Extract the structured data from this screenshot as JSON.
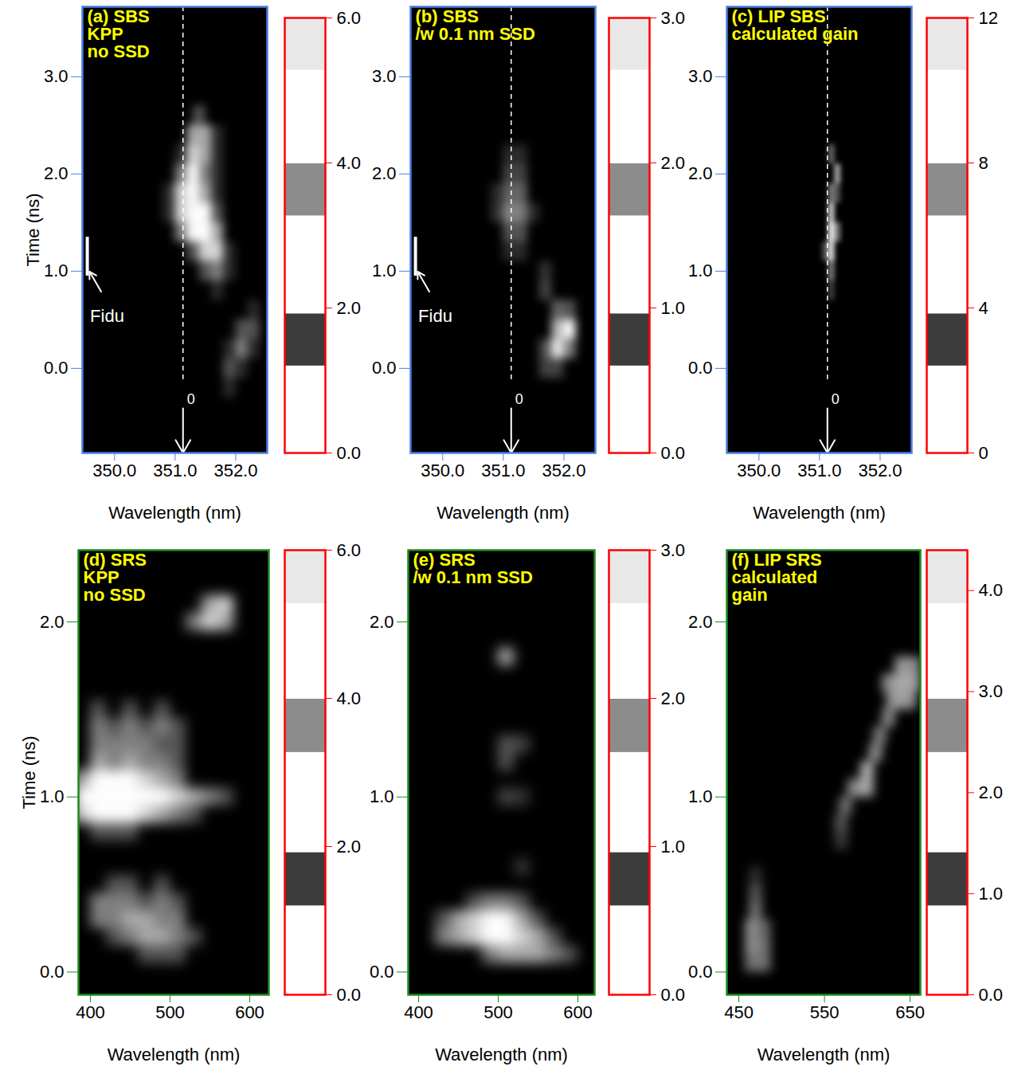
{
  "chart_data": [
    {
      "type": "heatmap",
      "title": [
        "(a) SBS",
        "KPP",
        "no SSD"
      ],
      "color": "#4a7fe0",
      "xlabel": "Wavelength (nm)",
      "ylabel": "Time (ns)",
      "xlim": [
        349.47,
        352.52
      ],
      "ylim": [
        -0.87,
        3.72
      ],
      "xticks": [
        350,
        351,
        352
      ],
      "yticks": [
        0,
        1,
        2,
        3
      ],
      "cell_size": [
        0.2,
        0.2
      ],
      "cells": [
        [
          351.4,
          2.6,
          2
        ],
        [
          351.3,
          2.4,
          4
        ],
        [
          351.5,
          2.4,
          4
        ],
        [
          351.7,
          2.4,
          1
        ],
        [
          351.1,
          2.2,
          1
        ],
        [
          351.3,
          2.2,
          5
        ],
        [
          351.5,
          2.2,
          4
        ],
        [
          351.7,
          2.2,
          1
        ],
        [
          351.1,
          2.0,
          3
        ],
        [
          351.3,
          2.0,
          6
        ],
        [
          351.5,
          2.0,
          3
        ],
        [
          351.7,
          2.0,
          1
        ],
        [
          350.9,
          1.8,
          1
        ],
        [
          351.1,
          1.8,
          5
        ],
        [
          351.3,
          1.8,
          6
        ],
        [
          351.5,
          1.8,
          4
        ],
        [
          351.7,
          1.8,
          1
        ],
        [
          350.9,
          1.6,
          1
        ],
        [
          351.1,
          1.6,
          5
        ],
        [
          351.3,
          1.6,
          6
        ],
        [
          351.5,
          1.6,
          6
        ],
        [
          351.7,
          1.6,
          2
        ],
        [
          351.1,
          1.4,
          3
        ],
        [
          351.3,
          1.4,
          6
        ],
        [
          351.5,
          1.4,
          6
        ],
        [
          351.7,
          1.4,
          4
        ],
        [
          351.3,
          1.2,
          2
        ],
        [
          351.5,
          1.2,
          5
        ],
        [
          351.7,
          1.2,
          5
        ],
        [
          351.9,
          1.2,
          1
        ],
        [
          351.5,
          1.0,
          2
        ],
        [
          351.7,
          1.0,
          3
        ],
        [
          351.9,
          1.0,
          1
        ],
        [
          351.7,
          0.8,
          1
        ],
        [
          352.3,
          0.6,
          1
        ],
        [
          352.1,
          0.4,
          2
        ],
        [
          352.3,
          0.4,
          2
        ],
        [
          351.9,
          0.2,
          1
        ],
        [
          352.1,
          0.2,
          3
        ],
        [
          352.3,
          0.2,
          1
        ],
        [
          351.9,
          0.0,
          2
        ],
        [
          352.1,
          0.0,
          1
        ],
        [
          351.9,
          -0.2,
          1
        ]
      ],
      "colorbar": {
        "range": [
          0,
          6
        ],
        "ticks": [
          0,
          2,
          4,
          6
        ]
      },
      "fiducial": {
        "label": "Fidu",
        "x": 349.55,
        "y1": 0.95,
        "y2": 1.35
      },
      "reference_line": {
        "x": 351.13,
        "label": "0"
      }
    },
    {
      "type": "heatmap",
      "title": [
        "(b) SBS",
        "/w 0.1 nm SSD"
      ],
      "color": "#4a7fe0",
      "xlabel": "Wavelength (nm)",
      "xlim": [
        349.47,
        352.52
      ],
      "ylim": [
        -0.87,
        3.72
      ],
      "xticks": [
        350,
        351,
        352
      ],
      "yticks": [
        0,
        1,
        2,
        3
      ],
      "cell_size": [
        0.2,
        0.2
      ],
      "cells": [
        [
          351.1,
          2.2,
          0.5
        ],
        [
          351.3,
          2.2,
          0.5
        ],
        [
          351.1,
          2.0,
          0.8
        ],
        [
          351.3,
          2.0,
          0.8
        ],
        [
          350.9,
          1.8,
          0.5
        ],
        [
          351.1,
          1.8,
          1.2
        ],
        [
          351.3,
          1.8,
          1.2
        ],
        [
          350.9,
          1.6,
          0.6
        ],
        [
          351.1,
          1.6,
          1.6
        ],
        [
          351.3,
          1.6,
          1.5
        ],
        [
          351.5,
          1.6,
          0.5
        ],
        [
          351.1,
          1.4,
          1.0
        ],
        [
          351.3,
          1.4,
          1.0
        ],
        [
          351.1,
          1.2,
          0.5
        ],
        [
          351.3,
          1.2,
          0.5
        ],
        [
          351.7,
          1.0,
          0.6
        ],
        [
          351.7,
          0.8,
          0.8
        ],
        [
          351.9,
          0.6,
          1.2
        ],
        [
          352.1,
          0.6,
          1.0
        ],
        [
          351.9,
          0.4,
          2.2
        ],
        [
          352.1,
          0.4,
          3
        ],
        [
          351.7,
          0.2,
          1.0
        ],
        [
          351.9,
          0.2,
          2.8
        ],
        [
          352.1,
          0.2,
          1.5
        ],
        [
          351.7,
          0.0,
          0.8
        ],
        [
          351.9,
          0.0,
          0.8
        ]
      ],
      "colorbar": {
        "range": [
          0,
          3
        ],
        "ticks": [
          0,
          1,
          2,
          3
        ]
      },
      "fiducial": {
        "label": "Fidu",
        "x": 349.55,
        "y1": 0.95,
        "y2": 1.35
      },
      "reference_line": {
        "x": 351.13,
        "label": "0"
      }
    },
    {
      "type": "heatmap",
      "title": [
        "(c) LIP SBS",
        "calculated gain"
      ],
      "color": "#4a7fe0",
      "xlabel": "Wavelength (nm)",
      "xlim": [
        349.47,
        352.52
      ],
      "ylim": [
        -0.87,
        3.72
      ],
      "xticks": [
        350,
        351,
        352
      ],
      "yticks": [
        0,
        1,
        2,
        3
      ],
      "cell_size": [
        0.1,
        0.2
      ],
      "cells": [
        [
          351.2,
          2.2,
          5
        ],
        [
          351.3,
          2.0,
          8
        ],
        [
          351.2,
          1.8,
          6
        ],
        [
          351.3,
          1.8,
          4
        ],
        [
          351.2,
          1.6,
          10
        ],
        [
          351.2,
          1.4,
          12
        ],
        [
          351.3,
          1.4,
          6
        ],
        [
          351.2,
          1.2,
          11
        ],
        [
          351.1,
          1.2,
          4
        ],
        [
          351.2,
          1.0,
          6
        ],
        [
          351.2,
          0.8,
          3
        ]
      ],
      "colorbar": {
        "range": [
          0,
          12
        ],
        "ticks": [
          0,
          4,
          8,
          12
        ]
      },
      "reference_line": {
        "x": 351.13,
        "label": "0"
      }
    },
    {
      "type": "heatmap",
      "title": [
        "(d) SRS",
        "KPP",
        "no SSD"
      ],
      "color": "#1e8a1e",
      "xlabel": "Wavelength (nm)",
      "ylabel": "Time (ns)",
      "xlim": [
        385,
        624
      ],
      "ylim": [
        -0.13,
        2.41
      ],
      "xticks": [
        400,
        500,
        600
      ],
      "yticks": [
        0,
        1,
        2
      ],
      "cell_size": [
        20,
        0.1
      ],
      "cells": [
        [
          550,
          2.1,
          4
        ],
        [
          570,
          2.1,
          5
        ],
        [
          530,
          2.0,
          3
        ],
        [
          550,
          2.0,
          5
        ],
        [
          570,
          2.0,
          4
        ],
        [
          410,
          1.5,
          2
        ],
        [
          450,
          1.5,
          2
        ],
        [
          490,
          1.5,
          2
        ],
        [
          410,
          1.4,
          3
        ],
        [
          430,
          1.4,
          2
        ],
        [
          450,
          1.4,
          3
        ],
        [
          470,
          1.4,
          2
        ],
        [
          490,
          1.4,
          3
        ],
        [
          510,
          1.4,
          2
        ],
        [
          410,
          1.3,
          3
        ],
        [
          430,
          1.3,
          3
        ],
        [
          450,
          1.3,
          3
        ],
        [
          470,
          1.3,
          3
        ],
        [
          490,
          1.3,
          2
        ],
        [
          510,
          1.3,
          2
        ],
        [
          410,
          1.2,
          4
        ],
        [
          430,
          1.2,
          3
        ],
        [
          450,
          1.2,
          4
        ],
        [
          470,
          1.2,
          3
        ],
        [
          490,
          1.2,
          3
        ],
        [
          510,
          1.2,
          2
        ],
        [
          390,
          1.1,
          4
        ],
        [
          410,
          1.1,
          6
        ],
        [
          430,
          1.1,
          6
        ],
        [
          450,
          1.1,
          6
        ],
        [
          470,
          1.1,
          5
        ],
        [
          490,
          1.1,
          4
        ],
        [
          510,
          1.1,
          3
        ],
        [
          390,
          1.0,
          6
        ],
        [
          410,
          1.0,
          6
        ],
        [
          430,
          1.0,
          6
        ],
        [
          450,
          1.0,
          6
        ],
        [
          470,
          1.0,
          6
        ],
        [
          490,
          1.0,
          6
        ],
        [
          510,
          1.0,
          5
        ],
        [
          530,
          1.0,
          4
        ],
        [
          550,
          1.0,
          3
        ],
        [
          570,
          1.0,
          2
        ],
        [
          390,
          0.9,
          5
        ],
        [
          410,
          0.9,
          6
        ],
        [
          430,
          0.9,
          6
        ],
        [
          450,
          0.9,
          6
        ],
        [
          470,
          0.9,
          5
        ],
        [
          490,
          0.9,
          4
        ],
        [
          510,
          0.9,
          3
        ],
        [
          530,
          0.9,
          2
        ],
        [
          410,
          0.8,
          2
        ],
        [
          430,
          0.8,
          2
        ],
        [
          450,
          0.8,
          2
        ],
        [
          430,
          0.5,
          2
        ],
        [
          450,
          0.5,
          2
        ],
        [
          490,
          0.5,
          2
        ],
        [
          410,
          0.4,
          3
        ],
        [
          430,
          0.4,
          3
        ],
        [
          450,
          0.4,
          3
        ],
        [
          470,
          0.4,
          2
        ],
        [
          490,
          0.4,
          3
        ],
        [
          510,
          0.4,
          2
        ],
        [
          410,
          0.3,
          3
        ],
        [
          430,
          0.3,
          3
        ],
        [
          450,
          0.3,
          4
        ],
        [
          470,
          0.3,
          4
        ],
        [
          490,
          0.3,
          3
        ],
        [
          510,
          0.3,
          3
        ],
        [
          430,
          0.2,
          2
        ],
        [
          450,
          0.2,
          3
        ],
        [
          470,
          0.2,
          4
        ],
        [
          490,
          0.2,
          4
        ],
        [
          510,
          0.2,
          3
        ],
        [
          530,
          0.2,
          2
        ],
        [
          470,
          0.1,
          2
        ],
        [
          490,
          0.1,
          2
        ],
        [
          510,
          0.1,
          2
        ]
      ],
      "colorbar": {
        "range": [
          0,
          6
        ],
        "ticks": [
          0,
          2,
          4,
          6
        ]
      }
    },
    {
      "type": "heatmap",
      "title": [
        "(e) SRS",
        "/w 0.1 nm SSD"
      ],
      "color": "#1e8a1e",
      "xlabel": "Wavelength (nm)",
      "xlim": [
        387,
        621
      ],
      "ylim": [
        -0.13,
        2.41
      ],
      "xticks": [
        400,
        500,
        600
      ],
      "yticks": [
        0,
        1,
        2
      ],
      "cell_size": [
        20,
        0.1
      ],
      "cells": [
        [
          510,
          1.8,
          2
        ],
        [
          510,
          1.3,
          1
        ],
        [
          530,
          1.3,
          0.8
        ],
        [
          510,
          1.2,
          1
        ],
        [
          510,
          1.0,
          0.8
        ],
        [
          530,
          1.0,
          0.6
        ],
        [
          530,
          0.6,
          0.6
        ],
        [
          470,
          0.4,
          1
        ],
        [
          490,
          0.4,
          1.5
        ],
        [
          510,
          0.4,
          1.5
        ],
        [
          530,
          0.4,
          1
        ],
        [
          430,
          0.3,
          1
        ],
        [
          450,
          0.3,
          2
        ],
        [
          470,
          0.3,
          2.5
        ],
        [
          490,
          0.3,
          3
        ],
        [
          510,
          0.3,
          3
        ],
        [
          530,
          0.3,
          2
        ],
        [
          550,
          0.3,
          1
        ],
        [
          430,
          0.2,
          1.5
        ],
        [
          450,
          0.2,
          2
        ],
        [
          470,
          0.2,
          2.5
        ],
        [
          490,
          0.2,
          3
        ],
        [
          510,
          0.2,
          3
        ],
        [
          530,
          0.2,
          2.5
        ],
        [
          550,
          0.2,
          2
        ],
        [
          570,
          0.2,
          1
        ],
        [
          490,
          0.1,
          1.5
        ],
        [
          510,
          0.1,
          2
        ],
        [
          530,
          0.1,
          2
        ],
        [
          550,
          0.1,
          2
        ],
        [
          570,
          0.1,
          1.5
        ],
        [
          590,
          0.1,
          1
        ]
      ],
      "colorbar": {
        "range": [
          0,
          3
        ],
        "ticks": [
          0,
          1,
          2,
          3
        ]
      }
    },
    {
      "type": "heatmap",
      "title": [
        "(f) LIP SRS",
        "calculated",
        "gain"
      ],
      "color": "#1e8a1e",
      "xlabel": "Wavelength (nm)",
      "xlim": [
        436,
        662
      ],
      "ylim": [
        -0.13,
        2.41
      ],
      "xticks": [
        450,
        550,
        650
      ],
      "yticks": [
        0,
        1,
        2
      ],
      "cell_size": [
        15,
        0.1
      ],
      "cells": [
        [
          465,
          0.05,
          2
        ],
        [
          480,
          0.05,
          2
        ],
        [
          465,
          0.15,
          2.5
        ],
        [
          480,
          0.15,
          2
        ],
        [
          465,
          0.25,
          2.5
        ],
        [
          480,
          0.25,
          1.8
        ],
        [
          470,
          0.35,
          2
        ],
        [
          470,
          0.45,
          1.5
        ],
        [
          470,
          0.55,
          0.8
        ],
        [
          570,
          0.75,
          1
        ],
        [
          570,
          0.85,
          1.5
        ],
        [
          575,
          0.95,
          2
        ],
        [
          585,
          1.05,
          2.5
        ],
        [
          600,
          1.05,
          3
        ],
        [
          600,
          1.15,
          3.2
        ],
        [
          610,
          1.25,
          2.5
        ],
        [
          615,
          1.35,
          2.2
        ],
        [
          625,
          1.45,
          2.4
        ],
        [
          630,
          1.55,
          2.5
        ],
        [
          640,
          1.55,
          2.8
        ],
        [
          650,
          1.55,
          2.6
        ],
        [
          625,
          1.65,
          2.5
        ],
        [
          640,
          1.65,
          3
        ],
        [
          655,
          1.65,
          2.8
        ],
        [
          640,
          1.75,
          2.7
        ],
        [
          655,
          1.75,
          2.5
        ]
      ],
      "colorbar": {
        "range": [
          0,
          4.4
        ],
        "ticks": [
          0,
          1,
          2,
          3,
          4
        ]
      }
    }
  ]
}
